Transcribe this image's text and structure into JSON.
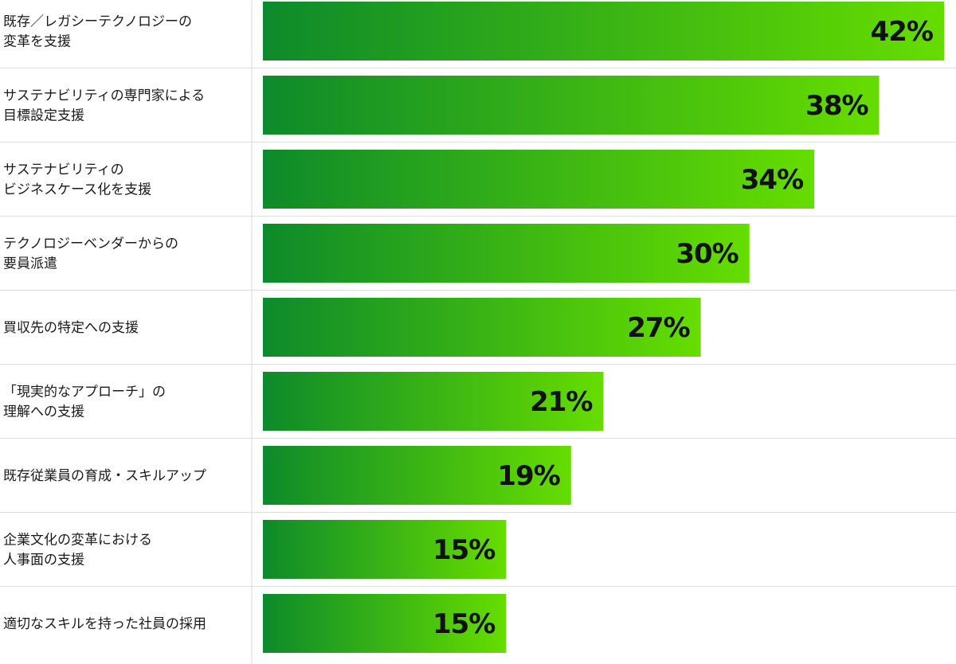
{
  "chart_data": {
    "type": "bar",
    "orientation": "horizontal",
    "categories": [
      [
        "既存／レガシーテクノロジーの",
        "変革を支援"
      ],
      [
        "サステナビリティの専門家による",
        "目標設定支援"
      ],
      [
        "サステナビリティの",
        "ビジネスケース化を支援"
      ],
      [
        "テクノロジーベンダーからの",
        "要員派遣"
      ],
      [
        "買収先の特定への支援"
      ],
      [
        "「現実的なアプローチ」の",
        "理解への支援"
      ],
      [
        "既存従業員の育成・スキルアップ"
      ],
      [
        "企業文化の変革における",
        "人事面の支援"
      ],
      [
        "適切なスキルを持った社員の採用"
      ]
    ],
    "values": [
      42,
      38,
      34,
      30,
      27,
      21,
      19,
      15,
      15
    ],
    "value_labels": [
      "42%",
      "38%",
      "34%",
      "30%",
      "27%",
      "21%",
      "19%",
      "15%",
      "15%"
    ],
    "xlim": [
      0,
      42
    ],
    "grid": false,
    "legend": "none",
    "colors": {
      "bar_start": "#0d8a2a",
      "bar_end": "#66dd00",
      "separator": "#dddddd",
      "axis_line": "#e5e5e5"
    }
  }
}
